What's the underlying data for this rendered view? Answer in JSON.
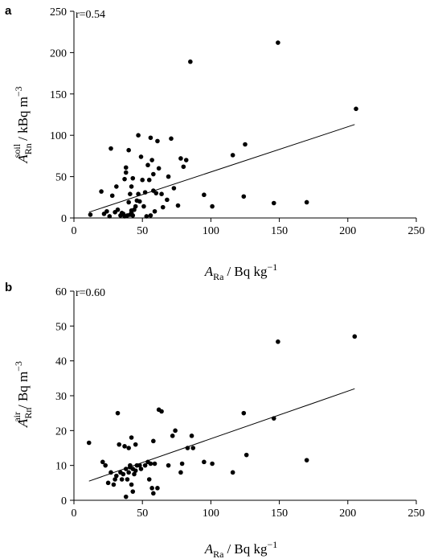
{
  "chart_data": [
    {
      "type": "scatter",
      "panel": "a",
      "annotation": "r=0.54",
      "xlabel": {
        "main": "A",
        "sub": "Ra",
        "unit": "/ Bq kg",
        "exp": "−1"
      },
      "ylabel": {
        "main": "A",
        "sub": "Rn",
        "sup": "soil",
        "unit": "/ kBq m",
        "exp": "−3"
      },
      "xlim": [
        0,
        250
      ],
      "ylim": [
        0,
        250
      ],
      "xticks": [
        "0",
        "50",
        "100",
        "150",
        "200",
        "250"
      ],
      "yticks": [
        "0",
        "50",
        "100",
        "150",
        "200",
        "250"
      ],
      "points": [
        [
          12,
          4
        ],
        [
          20,
          32
        ],
        [
          22,
          5
        ],
        [
          24,
          8
        ],
        [
          26,
          2
        ],
        [
          27,
          84
        ],
        [
          28,
          27
        ],
        [
          30,
          7
        ],
        [
          31,
          38
        ],
        [
          32,
          10
        ],
        [
          34,
          3
        ],
        [
          35,
          6
        ],
        [
          36,
          5
        ],
        [
          37,
          2
        ],
        [
          37,
          47
        ],
        [
          38,
          55
        ],
        [
          38,
          61
        ],
        [
          39,
          3
        ],
        [
          40,
          19
        ],
        [
          40,
          82
        ],
        [
          41,
          4
        ],
        [
          41,
          29
        ],
        [
          42,
          6
        ],
        [
          42,
          38
        ],
        [
          42,
          9
        ],
        [
          43,
          48
        ],
        [
          43,
          3
        ],
        [
          44,
          10
        ],
        [
          45,
          14
        ],
        [
          46,
          21
        ],
        [
          47,
          29
        ],
        [
          47,
          100
        ],
        [
          48,
          20
        ],
        [
          49,
          74
        ],
        [
          50,
          46
        ],
        [
          51,
          14
        ],
        [
          52,
          31
        ],
        [
          53,
          2
        ],
        [
          54,
          64
        ],
        [
          55,
          46
        ],
        [
          56,
          97
        ],
        [
          56,
          3
        ],
        [
          57,
          70
        ],
        [
          58,
          33
        ],
        [
          58,
          53
        ],
        [
          59,
          8
        ],
        [
          60,
          30
        ],
        [
          61,
          93
        ],
        [
          62,
          60
        ],
        [
          64,
          29
        ],
        [
          65,
          13
        ],
        [
          68,
          22
        ],
        [
          69,
          50
        ],
        [
          71,
          96
        ],
        [
          73,
          36
        ],
        [
          76,
          15
        ],
        [
          78,
          72
        ],
        [
          80,
          62
        ],
        [
          82,
          70
        ],
        [
          85,
          189
        ],
        [
          95,
          28
        ],
        [
          101,
          14
        ],
        [
          116,
          76
        ],
        [
          124,
          26
        ],
        [
          125,
          89
        ],
        [
          146,
          18
        ],
        [
          149,
          212
        ],
        [
          170,
          19
        ],
        [
          206,
          132
        ]
      ],
      "fit_line": [
        [
          11,
          7
        ],
        [
          205,
          113
        ]
      ]
    },
    {
      "type": "scatter",
      "panel": "b",
      "annotation": "r=0.60",
      "xlabel": {
        "main": "A",
        "sub": "Ra",
        "unit": "/ Bq kg",
        "exp": "−1"
      },
      "ylabel": {
        "main": "A",
        "sub": "Rn",
        "sup": "air",
        "unit": "/ Bq m",
        "exp": "−3"
      },
      "xlim": [
        0,
        250
      ],
      "ylim": [
        0,
        60
      ],
      "xticks": [
        "0",
        "50",
        "100",
        "150",
        "200",
        "250"
      ],
      "yticks": [
        "0",
        "10",
        "20",
        "30",
        "40",
        "50",
        "60"
      ],
      "points": [
        [
          11,
          16.5
        ],
        [
          21,
          11
        ],
        [
          23,
          10
        ],
        [
          25,
          5
        ],
        [
          27,
          8
        ],
        [
          29,
          4.5
        ],
        [
          30,
          6
        ],
        [
          31,
          7
        ],
        [
          32,
          25
        ],
        [
          33,
          16
        ],
        [
          34,
          8
        ],
        [
          35,
          6
        ],
        [
          36,
          7.5
        ],
        [
          37,
          15.5
        ],
        [
          38,
          9
        ],
        [
          38,
          1
        ],
        [
          39,
          6
        ],
        [
          40,
          15
        ],
        [
          40,
          8
        ],
        [
          41,
          9.5
        ],
        [
          41,
          10
        ],
        [
          42,
          4.5
        ],
        [
          42,
          18
        ],
        [
          43,
          9
        ],
        [
          43,
          2.5
        ],
        [
          44,
          7.5
        ],
        [
          45,
          16
        ],
        [
          45,
          8.5
        ],
        [
          46,
          10
        ],
        [
          48,
          10
        ],
        [
          49,
          9
        ],
        [
          52,
          10
        ],
        [
          54,
          11
        ],
        [
          55,
          6
        ],
        [
          56,
          10.5
        ],
        [
          57,
          3.5
        ],
        [
          58,
          17
        ],
        [
          58,
          2
        ],
        [
          59,
          10.5
        ],
        [
          61,
          3.5
        ],
        [
          62,
          26
        ],
        [
          64,
          25.5
        ],
        [
          69,
          10
        ],
        [
          72,
          18.5
        ],
        [
          74,
          20
        ],
        [
          78,
          8
        ],
        [
          79,
          10.5
        ],
        [
          83,
          15
        ],
        [
          86,
          18.5
        ],
        [
          87,
          15
        ],
        [
          95,
          11
        ],
        [
          101,
          10.5
        ],
        [
          116,
          8
        ],
        [
          124,
          25
        ],
        [
          126,
          13
        ],
        [
          146,
          23.5
        ],
        [
          149,
          45.5
        ],
        [
          170,
          11.5
        ],
        [
          205,
          47
        ]
      ],
      "fit_line": [
        [
          11,
          5.5
        ],
        [
          205,
          32
        ]
      ]
    }
  ]
}
